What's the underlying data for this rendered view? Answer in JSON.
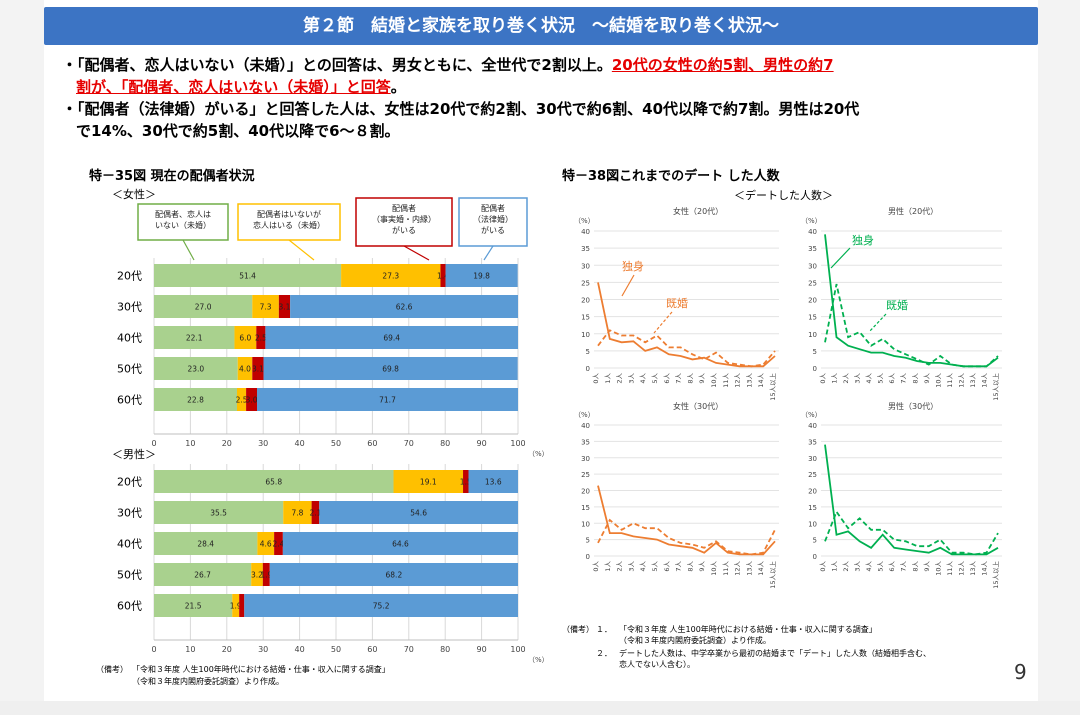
{
  "header": {
    "title": "第２節　結婚と家族を取り巻く状況　～結婚を取り巻く状況～"
  },
  "bullets": {
    "b1_text": "・「配偶者、恋人はいない（未婚）」との回答は、男女ともに、全世代で2割以上。",
    "b1_red1": "20代の女性の約5割、男性の約7",
    "b1_red2": "割が、「配偶者、恋人はいない（未婚）」と回答",
    "b1_end": "。",
    "b2_line1": "・「配偶者（法律婚）がいる」と回答した人は、女性は20代で約2割、30代で約6割、40代以降で約7割。男性は20代",
    "b2_line2": "で14%、30代で約5割、40代以降で6～８割。"
  },
  "colors": {
    "banner": "#3c74c4",
    "green": "#a9d18e",
    "yellow": "#ffc000",
    "darkred": "#c00000",
    "blue": "#5b9bd5",
    "orange": "#ed7d31",
    "greenline": "#00b050"
  },
  "left_chart": {
    "title": "特－35図 現在の配偶者状況",
    "female_label": "＜女性＞",
    "male_label": "＜男性＞",
    "pct_unit": "（%）",
    "legend": [
      "配偶者、恋人は\nいない（未婚）",
      "配偶者はいないが\n恋人はいる（未婚）",
      "配偶者\n（事実婚・内縁）\nがいる",
      "配偶者\n（法律婚）\nがいる"
    ],
    "note_label": "（備考）",
    "note_line1": "「令和３年度 人生100年時代における結婚・仕事・収入に関する調査」",
    "note_line2": "（令和３年度内閣府委託調査）より作成。"
  },
  "right_chart": {
    "title": "特－38図これまでのデート した人数",
    "subtitle": "＜デートした人数＞",
    "panels": [
      "女性（20代）",
      "男性（20代）",
      "女性（30代）",
      "男性（30代）"
    ],
    "label_single": "独身",
    "label_married": "既婚",
    "note_label": "（備考）",
    "note1_num": "１．",
    "note1_line1": "「令和３年度 人生100年時代における結婚・仕事・収入に関する調査」",
    "note1_line2": "（令和３年度内閣府委託調査）より作成。",
    "note2_num": "２．",
    "note2_line1": "デートした人数は、中学卒業から最初の結婚まで「デート」した人数（結婚相手含む、",
    "note2_line2": "恋人でない人含む）。"
  },
  "page_number": "9",
  "chart_data": [
    {
      "type": "bar",
      "stacked": "horizontal",
      "title": "特－35図 現在の配偶者状況",
      "group": "＜女性＞",
      "categories": [
        "20代",
        "30代",
        "40代",
        "50代",
        "60代"
      ],
      "series": [
        {
          "name": "配偶者、恋人はいない（未婚）",
          "values": [
            51.4,
            27.0,
            22.1,
            23.0,
            22.8
          ],
          "labels": [
            "51.4",
            "27.0",
            "22.1",
            "23.0",
            "22.8"
          ]
        },
        {
          "name": "配偶者はいないが恋人はいる（未婚）",
          "values": [
            27.3,
            7.3,
            6.0,
            4.0,
            2.5
          ],
          "labels": [
            "27.3",
            "7.3",
            "6.0",
            "4.0",
            "2.5"
          ]
        },
        {
          "name": "配偶者（事実婚・内縁）がいる",
          "values": [
            1.4,
            3.1,
            2.5,
            3.1,
            3.0
          ],
          "labels": [
            "1.4",
            "3.1",
            "2.5",
            "3.1",
            "3.0"
          ]
        },
        {
          "name": "配偶者（法律婚）がいる",
          "values": [
            19.8,
            62.6,
            69.4,
            69.8,
            71.7
          ],
          "labels": [
            "19.8",
            "62.6",
            "69.4",
            "69.8",
            "71.7"
          ]
        }
      ],
      "xlim": [
        0,
        100
      ],
      "xticks": [
        "0",
        "10",
        "20",
        "30",
        "40",
        "50",
        "60",
        "70",
        "80",
        "90",
        "100"
      ],
      "xunit": "（%）"
    },
    {
      "type": "bar",
      "stacked": "horizontal",
      "group": "＜男性＞",
      "categories": [
        "20代",
        "30代",
        "40代",
        "50代",
        "60代"
      ],
      "series": [
        {
          "name": "配偶者、恋人はいない（未婚）",
          "values": [
            65.8,
            35.5,
            28.4,
            26.7,
            21.5
          ],
          "labels": [
            "65.8",
            "35.5",
            "28.4",
            "26.7",
            "21.5"
          ]
        },
        {
          "name": "配偶者はいないが恋人はいる（未婚）",
          "values": [
            19.1,
            7.8,
            4.6,
            3.2,
            1.9
          ],
          "labels": [
            "19.1",
            "7.8",
            "4.6",
            "3.2",
            "1.9"
          ]
        },
        {
          "name": "配偶者（事実婚・内縁）がいる",
          "values": [
            1.5,
            2.1,
            2.4,
            1.9,
            1.4
          ],
          "labels": [
            "1.5",
            "2.1",
            "2.4",
            "1.9",
            ""
          ]
        },
        {
          "name": "配偶者（法律婚）がいる",
          "values": [
            13.6,
            54.6,
            64.6,
            68.2,
            75.2
          ],
          "labels": [
            "13.6",
            "54.6",
            "64.6",
            "68.2",
            "75.2"
          ]
        }
      ],
      "xlim": [
        0,
        100
      ],
      "xticks": [
        "0",
        "10",
        "20",
        "30",
        "40",
        "50",
        "60",
        "70",
        "80",
        "90",
        "100"
      ],
      "xunit": "（%）"
    },
    {
      "type": "line",
      "title": "女性（20代）",
      "x": [
        "0人",
        "1人",
        "2人",
        "3人",
        "4人",
        "5人",
        "6人",
        "7人",
        "8人",
        "9人",
        "10人",
        "11人",
        "12人",
        "13人",
        "14人",
        "15人以上"
      ],
      "series": [
        {
          "name": "独身",
          "values": [
            25,
            8.5,
            7.5,
            7.8,
            5.0,
            6.0,
            4.0,
            3.5,
            2.5,
            3.0,
            1.5,
            1.0,
            0.5,
            0.5,
            0.5,
            3.5
          ]
        },
        {
          "name": "既婚",
          "values": [
            6.5,
            11,
            9.5,
            9.5,
            7.5,
            9.5,
            6.0,
            6.0,
            4.0,
            2.5,
            4.5,
            1.5,
            1.0,
            0.5,
            1.0,
            5.0
          ]
        }
      ],
      "ylim": [
        0,
        40
      ],
      "yticks": [
        "0",
        "5",
        "10",
        "15",
        "20",
        "25",
        "30",
        "35",
        "40"
      ],
      "yunit": "（%）"
    },
    {
      "type": "line",
      "title": "男性（20代）",
      "x": [
        "0人",
        "1人",
        "2人",
        "3人",
        "4人",
        "5人",
        "6人",
        "7人",
        "8人",
        "9人",
        "10人",
        "11人",
        "12人",
        "13人",
        "14人",
        "15人以上"
      ],
      "series": [
        {
          "name": "独身",
          "values": [
            39,
            9,
            6.5,
            5.5,
            4.5,
            4.5,
            3.5,
            3.0,
            2.0,
            1.5,
            1.5,
            1.0,
            0.5,
            0.5,
            0.5,
            3.0
          ]
        },
        {
          "name": "既婚",
          "values": [
            7.5,
            24.5,
            9.0,
            10.5,
            6.5,
            8.5,
            5.5,
            4.0,
            2.5,
            1.0,
            3.5,
            1.0,
            0.5,
            0.5,
            0.5,
            3.5
          ]
        }
      ],
      "ylim": [
        0,
        40
      ],
      "yticks": [
        "0",
        "5",
        "10",
        "15",
        "20",
        "25",
        "30",
        "35",
        "40"
      ],
      "yunit": "（%）"
    },
    {
      "type": "line",
      "title": "女性（30代）",
      "x": [
        "0人",
        "1人",
        "2人",
        "3人",
        "4人",
        "5人",
        "6人",
        "7人",
        "8人",
        "9人",
        "10人",
        "11人",
        "12人",
        "13人",
        "14人",
        "15人以上"
      ],
      "series": [
        {
          "name": "独身",
          "values": [
            21.5,
            7.0,
            7.0,
            6.0,
            5.5,
            5.0,
            3.5,
            3.0,
            2.5,
            1.0,
            4.0,
            1.0,
            0.5,
            0.5,
            0.5,
            4.5
          ]
        },
        {
          "name": "既婚",
          "values": [
            4.0,
            11.0,
            8.0,
            10.0,
            8.5,
            8.5,
            5.5,
            4.0,
            3.5,
            2.5,
            4.5,
            1.5,
            1.0,
            0.5,
            1.0,
            8.0
          ]
        }
      ],
      "ylim": [
        0,
        40
      ],
      "yticks": [
        "0",
        "5",
        "10",
        "15",
        "20",
        "25",
        "30",
        "35",
        "40"
      ],
      "yunit": "（%）"
    },
    {
      "type": "line",
      "title": "男性（30代）",
      "x": [
        "0人",
        "1人",
        "2人",
        "3人",
        "4人",
        "5人",
        "6人",
        "7人",
        "8人",
        "9人",
        "10人",
        "11人",
        "12人",
        "13人",
        "14人",
        "15人以上"
      ],
      "series": [
        {
          "name": "独身",
          "values": [
            34,
            6.5,
            7.5,
            4.5,
            2.5,
            6.5,
            2.5,
            2.0,
            1.5,
            1.0,
            2.5,
            0.5,
            0.5,
            0.5,
            0.5,
            2.5
          ]
        },
        {
          "name": "既婚",
          "values": [
            4.5,
            13.5,
            8.5,
            11.5,
            8.0,
            8.0,
            5.0,
            4.5,
            3.0,
            3.0,
            5.0,
            1.0,
            1.0,
            0.5,
            1.0,
            7.0
          ]
        }
      ],
      "ylim": [
        0,
        40
      ],
      "yticks": [
        "0",
        "5",
        "10",
        "15",
        "20",
        "25",
        "30",
        "35",
        "40"
      ],
      "yunit": "（%）"
    }
  ]
}
